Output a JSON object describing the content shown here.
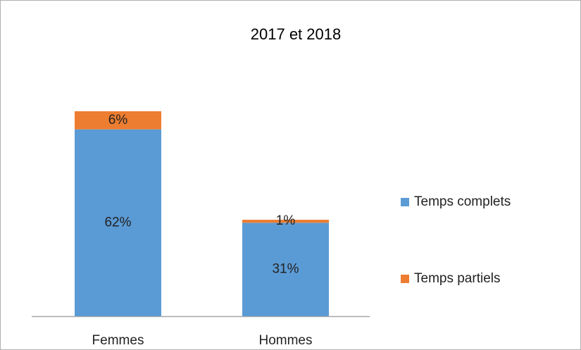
{
  "chart_data": {
    "type": "stacked_bar",
    "title": "2017 et 2018",
    "categories": [
      "Femmes",
      "Hommes"
    ],
    "series": [
      {
        "name": "Temps complets",
        "color": "#5b9bd5",
        "values": [
          62,
          31
        ],
        "value_labels": [
          "62%",
          "31%"
        ]
      },
      {
        "name": "Temps partiels",
        "color": "#ed7d31",
        "values": [
          6,
          1
        ],
        "value_labels": [
          "6%",
          "1%"
        ]
      }
    ],
    "legend": "right"
  }
}
